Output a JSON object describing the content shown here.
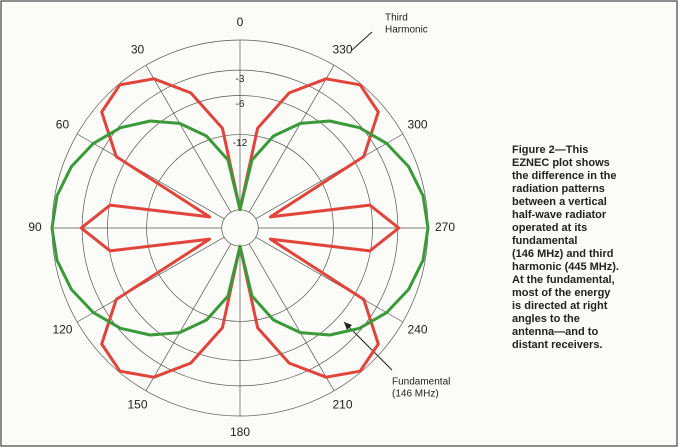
{
  "chart_data": {
    "type": "polar",
    "angle_direction": "counterclockwise",
    "angle_zero": "top",
    "theta": [
      0,
      10,
      20,
      30,
      40,
      50,
      60,
      70,
      80,
      90,
      100,
      110,
      120,
      130,
      140,
      150,
      160,
      170,
      180,
      190,
      200,
      210,
      220,
      230,
      240,
      250,
      260,
      270,
      280,
      290,
      300,
      310,
      320,
      330,
      340,
      350
    ],
    "series": [
      {
        "color": "#e0443a",
        "values": [
          -40,
          -10.6,
          -4.6,
          -1.5,
          -0.1,
          -0.7,
          -4.7,
          -30.2,
          -6.1,
          -2.9,
          -6.1,
          -30.2,
          -4.7,
          -0.7,
          -0.1,
          -1.5,
          -4.6,
          -10.6,
          -40,
          -10.6,
          -4.6,
          -1.5,
          -0.1,
          -0.7,
          -4.7,
          -30.2,
          -6.1,
          -2.9,
          -6.1,
          -30.2,
          -4.7,
          -0.7,
          -0.1,
          -1.5,
          -4.6,
          -10.6
        ]
      },
      {
        "color": "#3a9a3a",
        "values": [
          -40,
          -17.2,
          -11.2,
          -7.6,
          -5.1,
          -3.2,
          -1.8,
          -0.8,
          -0.2,
          0,
          -0.2,
          -0.8,
          -1.8,
          -3.2,
          -5.1,
          -7.6,
          -11.2,
          -17.2,
          -40,
          -17.2,
          -11.2,
          -7.6,
          -5.1,
          -3.2,
          -1.8,
          -0.8,
          -0.2,
          0,
          -0.2,
          -0.8,
          -1.8,
          -3.2,
          -5.1,
          -7.6,
          -11.2,
          -17.2
        ]
      }
    ],
    "rscale": "arrl-log",
    "rlim": [
      -40,
      0
    ],
    "rticks": [
      -3,
      -6,
      -12
    ],
    "thetaticks": [
      0,
      30,
      60,
      90,
      120,
      150,
      180,
      210,
      240,
      270,
      300,
      330
    ],
    "grid": true,
    "annotations": [
      {
        "lines": [
          "Third",
          "Harmonic"
        ]
      },
      {
        "lines": [
          "Fundamental",
          "(146 MHz)"
        ]
      }
    ],
    "caption": [
      "Figure 2—This",
      "EZNEC plot shows",
      "the difference in the",
      "radiation patterns",
      "between a  vertical",
      "half-wave radiator",
      "operated at its",
      "fundamental",
      "(146 MHz) and third",
      "harmonic (445 MHz).",
      "At the fundamental,",
      "most of the energy",
      "is directed at right",
      "angles to the",
      "antenna—and to",
      "distant receivers."
    ]
  }
}
